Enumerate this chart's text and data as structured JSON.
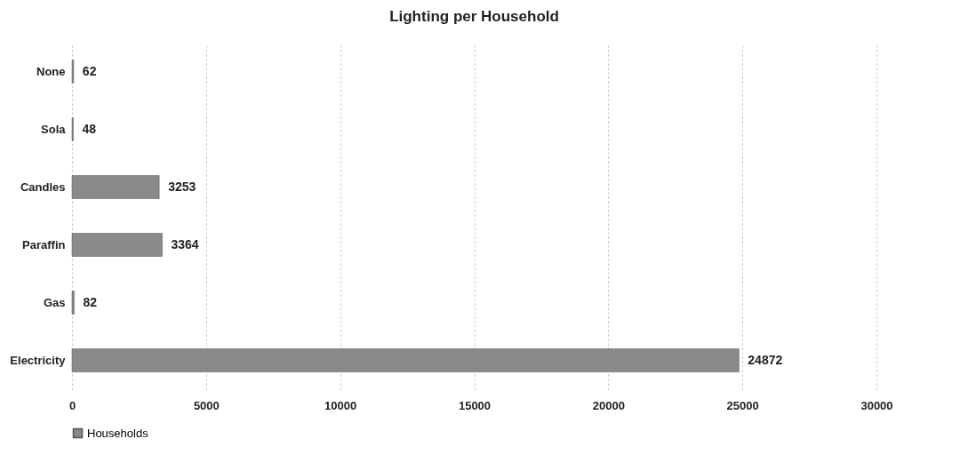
{
  "chart_data": {
    "type": "bar",
    "orientation": "horizontal",
    "title": "Lighting per Household",
    "categories": [
      "None",
      "Sola",
      "Candles",
      "Paraffin",
      "Gas",
      "Electricity"
    ],
    "series": [
      {
        "name": "Households",
        "color": "#8a8a8a",
        "values": [
          62,
          48,
          3253,
          3364,
          82,
          24872
        ]
      }
    ],
    "xlim": [
      0,
      30000
    ],
    "xticks": [
      0,
      5000,
      10000,
      15000,
      20000,
      25000,
      30000
    ],
    "data_labels": true,
    "grid": "x",
    "legend": "bottom"
  }
}
